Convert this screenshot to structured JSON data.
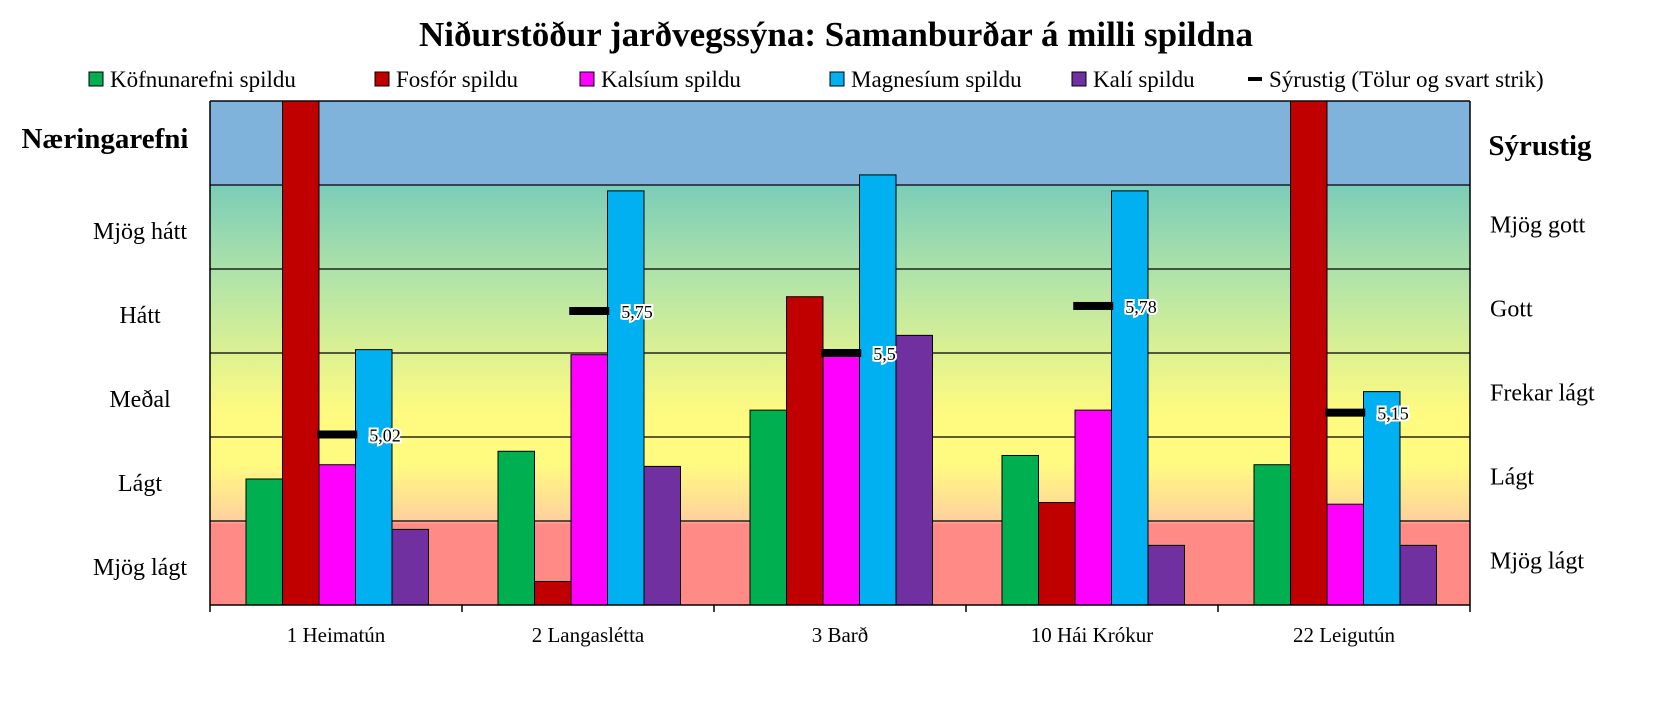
{
  "chart_data": {
    "type": "bar",
    "title": "Niðurstöður jarðvegssýna: Samanburðar á milli spildna",
    "left_axis_title": "Næringarefni",
    "right_axis_title": "Sýrustig",
    "left_levels": [
      "Mjög lágt",
      "Lágt",
      "Meðal",
      "Hátt",
      "Mjög hátt"
    ],
    "right_levels": [
      "Mjög lágt",
      "Lágt",
      "Frekar lágt",
      "Gott",
      "Mjög gott"
    ],
    "ylim": [
      0,
      6
    ],
    "categories": [
      "1 Heimatún",
      "2 Langaslétta",
      "3 Barð",
      "10 Hái Krókur",
      "22 Leigutún"
    ],
    "series": [
      {
        "name": "Köfnunarefni spildu",
        "color": "#00b050",
        "values": [
          1.5,
          1.83,
          2.32,
          1.78,
          1.67
        ]
      },
      {
        "name": "Fosfór spildu",
        "color": "#c00000",
        "values": [
          6.0,
          0.28,
          3.67,
          1.22,
          6.0
        ]
      },
      {
        "name": "Kalsíum spildu",
        "color": "#ff00ff",
        "values": [
          1.67,
          2.98,
          3.0,
          2.32,
          1.2
        ]
      },
      {
        "name": "Magnesíum spildu",
        "color": "#00b0f0",
        "values": [
          3.04,
          4.93,
          5.12,
          4.93,
          2.54
        ]
      },
      {
        "name": "Kalí spildu",
        "color": "#7030a0",
        "values": [
          0.9,
          1.65,
          3.21,
          0.71,
          0.71
        ]
      }
    ],
    "ph": {
      "name": "Sýrustig (Tölur og svart strik)",
      "values": [
        5.02,
        5.75,
        5.5,
        5.78,
        5.15
      ],
      "labels": [
        "5,02",
        "5,75",
        "5,5",
        "5,78",
        "5,15"
      ],
      "positions": [
        2.03,
        3.5,
        3.0,
        3.56,
        2.29
      ]
    },
    "background_colors": {
      "top": "#80b3dc",
      "very_high": "#7ccdb8",
      "high": "#b6e6a6",
      "medium": "#fffb80",
      "low": "#ffd29d",
      "very_low": "#ff8a86"
    }
  }
}
